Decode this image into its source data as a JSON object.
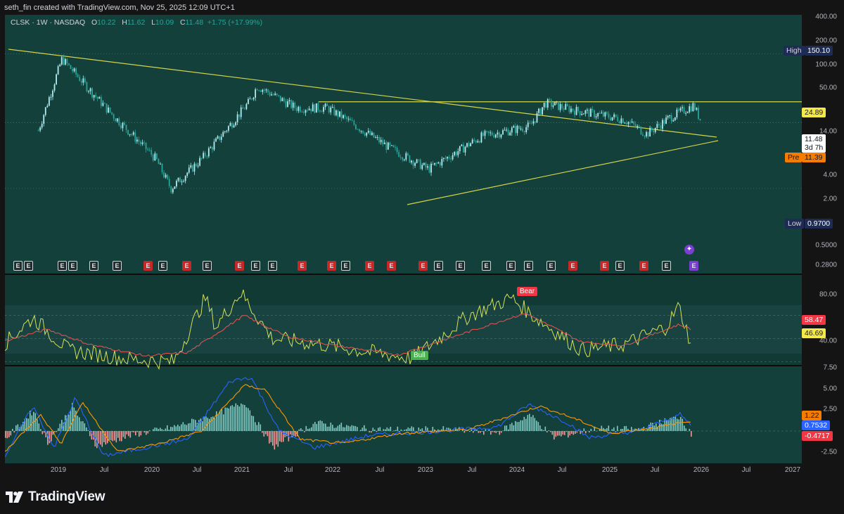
{
  "header": {
    "attribution": "seth_fin created with TradingView.com, Nov 25, 2025 12:09 UTC+1"
  },
  "symbol": {
    "ticker": "CLSK",
    "interval": "1W",
    "exchange": "NASDAQ",
    "open_label": "O",
    "open": "10.22",
    "high_label": "H",
    "high": "11.62",
    "low_label": "L",
    "low": "10.09",
    "close_label": "C",
    "close": "11.48",
    "change": "+1.75 (+17.99%)"
  },
  "price_axis": {
    "ticks": [
      "400.00",
      "200.00",
      "100.00",
      "50.00",
      "14.00",
      "4.00",
      "2.00",
      "0.5000",
      "0.2800"
    ],
    "high_label": "High",
    "high_value": "150.10",
    "low_label": "Low",
    "low_value": "0.9700",
    "resistance_value": "24.89",
    "last_price": "11.48",
    "countdown": "3d 7h",
    "pre_label": "Pre",
    "pre_value": "11.39"
  },
  "rsi_axis": {
    "ticks": [
      "80.00",
      "40.00"
    ],
    "rsi_ma_value": "58.47",
    "rsi_value": "46.69",
    "bear_label": "Bear",
    "bull_label": "Bull"
  },
  "macd_axis": {
    "ticks": [
      "7.50",
      "5.00",
      "2.50",
      "-2.50"
    ],
    "signal_value": "1.22",
    "macd_value": "0.7532",
    "hist_value": "-0.4717"
  },
  "time_axis": {
    "labels": [
      "2019",
      "Jul",
      "2020",
      "Jul",
      "2021",
      "Jul",
      "2022",
      "Jul",
      "2023",
      "Jul",
      "2024",
      "Jul",
      "2025",
      "Jul",
      "2026",
      "Jul",
      "2027"
    ]
  },
  "earnings_marker": "E",
  "footer": {
    "brand": "TradingView"
  },
  "colors": {
    "bull": "#26a69a",
    "bear": "#ef5350",
    "trendline": "#d4d44a",
    "pane_bg": "#13403a",
    "rsi_line": "#d4e157",
    "rsi_ma": "#ef5350",
    "macd_line": "#2962ff",
    "signal_line": "#ff9800"
  },
  "chart_data": {
    "type": "candlestick",
    "series_scale": "log",
    "x": [
      "2018-10",
      "2019-01",
      "2019-07",
      "2020-01",
      "2020-03",
      "2020-07",
      "2021-01",
      "2021-02",
      "2021-07",
      "2021-11",
      "2022-01",
      "2022-07",
      "2022-12",
      "2023-07",
      "2024-01",
      "2024-03",
      "2024-07",
      "2025-01",
      "2025-04",
      "2025-07",
      "2025-10",
      "2025-11"
    ],
    "close": [
      8.5,
      125.0,
      18.0,
      3.0,
      0.97,
      3.0,
      25.0,
      45.0,
      20.0,
      20.0,
      14.0,
      4.5,
      2.0,
      7.0,
      10.0,
      24.0,
      18.0,
      13.0,
      7.5,
      14.0,
      22.0,
      11.48
    ],
    "ylim": [
      0.28,
      400.0
    ],
    "annotations": {
      "all_time_high": 150.1,
      "all_time_low": 0.97,
      "horizontal_resistance": 24.89,
      "last_close": 11.48,
      "premarket": 11.39
    }
  }
}
